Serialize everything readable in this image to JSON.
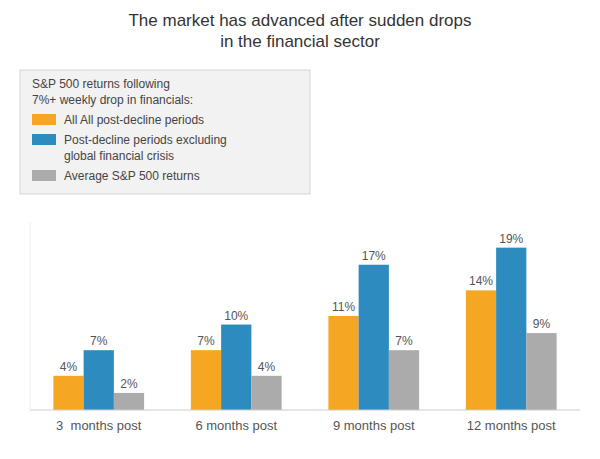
{
  "chart_data": {
    "type": "bar",
    "title": "The market has advanced after sudden drops\nin the financial sector",
    "categories": [
      "3  months post",
      "6 months post",
      "9 months post",
      "12 months post"
    ],
    "series": [
      {
        "name": "All All post-decline periods",
        "color": "#F5A623",
        "values": [
          4,
          7,
          11,
          14
        ],
        "value_labels": [
          "4%",
          "7%",
          "11%",
          "14%"
        ]
      },
      {
        "name": "Post-decline periods excluding\nglobal financial crisis",
        "color": "#2E8BBF",
        "values": [
          7,
          10,
          17,
          19
        ],
        "value_labels": [
          "7%",
          "10%",
          "17%",
          "19%"
        ]
      },
      {
        "name": "Average S&P 500 returns",
        "color": "#ABABAB",
        "values": [
          2,
          4,
          7,
          9
        ],
        "value_labels": [
          "2%",
          "4%",
          "7%",
          "9%"
        ]
      }
    ],
    "legend_title": "S&P 500 returns following\n7%+ weekly drop in financials:",
    "legend": "upper left",
    "ylim": [
      0,
      22
    ],
    "grid": false,
    "data_labels": true,
    "tick_labels": "x"
  }
}
